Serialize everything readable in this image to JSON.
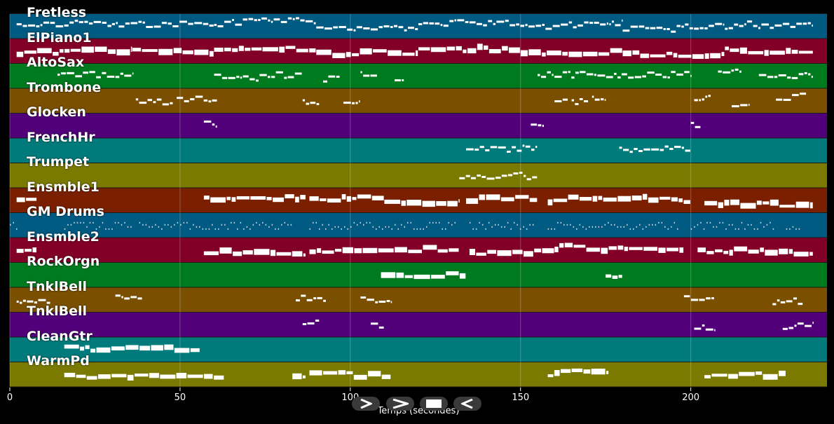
{
  "tracks": [
    {
      "name": "Fretless",
      "color": "#005a82",
      "notes": [
        [
          2,
          30
        ],
        [
          30,
          60
        ],
        [
          60,
          90
        ],
        [
          90,
          120
        ],
        [
          120,
          150
        ],
        [
          150,
          180
        ],
        [
          180,
          210
        ],
        [
          210,
          236
        ]
      ],
      "dense": true,
      "style": "thin"
    },
    {
      "name": "ElPiano1",
      "color": "#820028",
      "notes": [
        [
          2,
          8
        ],
        [
          8,
          36
        ],
        [
          36,
          60
        ],
        [
          60,
          90
        ],
        [
          90,
          120
        ],
        [
          120,
          150
        ],
        [
          150,
          180
        ],
        [
          180,
          210
        ],
        [
          210,
          236
        ]
      ],
      "dense": true,
      "style": "thick"
    },
    {
      "name": "AltoSax",
      "color": "#007a1e",
      "notes": [
        [
          14,
          36
        ],
        [
          60,
          86
        ],
        [
          92,
          97
        ],
        [
          103,
          108
        ],
        [
          113,
          116
        ],
        [
          155,
          200
        ],
        [
          208,
          215
        ],
        [
          220,
          236
        ]
      ],
      "dense": true,
      "style": "thin"
    },
    {
      "name": "Trombone",
      "color": "#7a5000",
      "notes": [
        [
          37,
          48
        ],
        [
          49,
          61
        ],
        [
          86,
          91
        ],
        [
          98,
          103
        ],
        [
          160,
          164
        ],
        [
          165,
          170
        ],
        [
          171,
          175
        ],
        [
          201,
          206
        ],
        [
          212,
          217
        ],
        [
          225,
          234
        ]
      ],
      "dense": true,
      "style": "thin"
    },
    {
      "name": "Glocken",
      "color": "#52007a",
      "notes": [
        [
          57,
          61
        ],
        [
          153,
          157
        ],
        [
          200,
          203
        ]
      ],
      "dense": true,
      "style": "thin"
    },
    {
      "name": "FrenchHr",
      "color": "#007a7a",
      "notes": [
        [
          134,
          155
        ],
        [
          179,
          200
        ]
      ],
      "dense": true,
      "style": "thin"
    },
    {
      "name": "Trumpet",
      "color": "#7a7a00",
      "notes": [
        [
          132,
          155
        ]
      ],
      "dense": true,
      "style": "thin"
    },
    {
      "name": "Ensmble1",
      "color": "#7a2000",
      "notes": [
        [
          2,
          8
        ],
        [
          57,
          87
        ],
        [
          88,
          110
        ],
        [
          110,
          132
        ],
        [
          134,
          155
        ],
        [
          158,
          200
        ],
        [
          204,
          236
        ]
      ],
      "dense": true,
      "style": "thick"
    },
    {
      "name": "GM Drums",
      "color": "#005a82",
      "notes": [
        [
          0,
          2
        ],
        [
          16,
          36
        ],
        [
          38,
          83
        ],
        [
          88,
          131
        ],
        [
          135,
          154
        ],
        [
          158,
          196
        ],
        [
          200,
          225
        ],
        [
          228,
          232
        ]
      ],
      "dense": true,
      "style": "drums"
    },
    {
      "name": "Ensmble2",
      "color": "#820028",
      "notes": [
        [
          2,
          8
        ],
        [
          57,
          87
        ],
        [
          88,
          132
        ],
        [
          135,
          160
        ],
        [
          160,
          198
        ],
        [
          202,
          236
        ]
      ],
      "dense": true,
      "style": "thick"
    },
    {
      "name": "RockOrgn",
      "color": "#007a1e",
      "notes": [
        [
          109,
          134
        ],
        [
          175,
          180
        ]
      ],
      "dense": true,
      "style": "thick"
    },
    {
      "name": "TnklBell",
      "color": "#7a5000",
      "notes": [
        [
          2,
          12
        ],
        [
          31,
          39
        ],
        [
          84,
          93
        ],
        [
          103,
          112
        ],
        [
          198,
          207
        ],
        [
          224,
          233
        ]
      ],
      "dense": true,
      "style": "thin"
    },
    {
      "name": "TnklBell",
      "color": "#52007a",
      "notes": [
        [
          86,
          91
        ],
        [
          106,
          110
        ],
        [
          201,
          207
        ],
        [
          227,
          236
        ]
      ],
      "dense": true,
      "style": "thin"
    },
    {
      "name": "CleanGtr",
      "color": "#007a7a",
      "notes": [
        [
          16,
          56
        ]
      ],
      "dense": true,
      "style": "thick"
    },
    {
      "name": "WarmPd",
      "color": "#7a7a00",
      "notes": [
        [
          16,
          63
        ],
        [
          83,
          87
        ],
        [
          88,
          112
        ],
        [
          158,
          176
        ],
        [
          204,
          228
        ]
      ],
      "dense": true,
      "style": "thick"
    }
  ],
  "xaxis": {
    "label": "Temps (secondes)",
    "ticks": [
      0,
      50,
      100,
      150,
      200
    ],
    "min": 0,
    "max": 240
  },
  "controls": [
    {
      "name": "play-button",
      "icon": "play-icon"
    },
    {
      "name": "fast-forward-button",
      "icon": "fast-forward-icon"
    },
    {
      "name": "stop-button",
      "icon": "stop-icon"
    },
    {
      "name": "rewind-button",
      "icon": "rewind-icon"
    }
  ]
}
